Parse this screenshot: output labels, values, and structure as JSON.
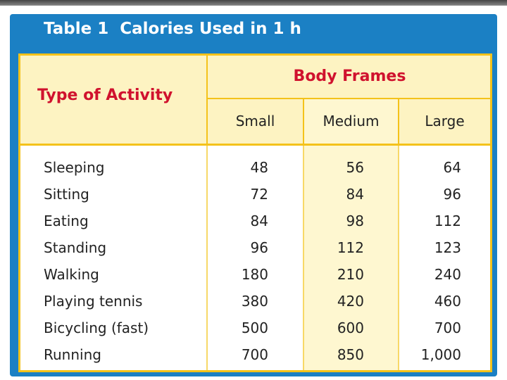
{
  "table": {
    "title": "Table 1  Calories Used in 1 h",
    "header": {
      "activity": "Type of Activity",
      "group": "Body Frames",
      "columns": [
        "Small",
        "Medium",
        "Large"
      ]
    },
    "rows": [
      [
        "Sleeping",
        "48",
        "56",
        "64"
      ],
      [
        "Sitting",
        "72",
        "84",
        "96"
      ],
      [
        "Eating",
        "84",
        "98",
        "112"
      ],
      [
        "Standing",
        "96",
        "112",
        "123"
      ],
      [
        "Walking",
        "180",
        "210",
        "240"
      ],
      [
        "Playing tennis",
        "380",
        "420",
        "460"
      ],
      [
        "Bicycling (fast)",
        "500",
        "600",
        "700"
      ],
      [
        "Running",
        "700",
        "850",
        "1,000"
      ]
    ]
  }
}
